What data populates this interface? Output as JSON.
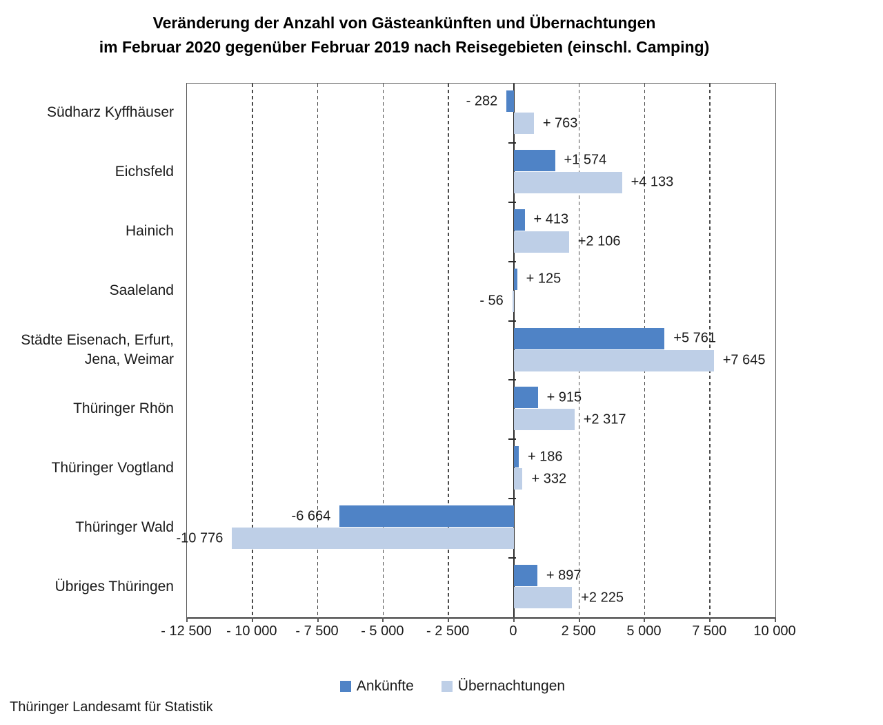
{
  "title": {
    "line1": "Veränderung der Anzahl von Gästeankünften und Übernachtungen",
    "line2": "im Februar 2020 gegenüber Februar 2019 nach Reisegebieten (einschl. Camping)"
  },
  "source": "Thüringer Landesamt für Statistik",
  "colors": {
    "ankuenfte": "#4F83C6",
    "uebernachtungen": "#BECFE7",
    "gridline": "#4a4a4a",
    "axis": "#595959"
  },
  "chart_data": {
    "type": "bar",
    "orientation": "horizontal",
    "title": "Veränderung der Anzahl von Gästeankünften und Übernachtungen im Februar 2020 gegenüber Februar 2019 nach Reisegebieten (einschl. Camping)",
    "xlabel": "",
    "ylabel": "",
    "grid": "dashed-vertical",
    "legend_position": "bottom",
    "xlim": [
      -12500,
      10000
    ],
    "x_ticks": [
      -12500,
      -10000,
      -7500,
      -5000,
      -2500,
      0,
      2500,
      5000,
      7500,
      10000
    ],
    "x_tick_labels": [
      "- 12 500",
      "- 10 000",
      "- 7 500",
      "- 5 000",
      "- 2 500",
      "0",
      "2 500",
      "5 000",
      "7 500",
      "10 000"
    ],
    "categories": [
      "Südharz Kyffhäuser",
      "Eichsfeld",
      "Hainich",
      "Saaleland",
      "Städte Eisenach, Erfurt,\nJena, Weimar",
      "Thüringer Rhön",
      "Thüringer Vogtland",
      "Thüringer Wald",
      "Übriges Thüringen"
    ],
    "series": [
      {
        "name": "Ankünfte",
        "values": [
          -282,
          1574,
          413,
          125,
          5761,
          915,
          186,
          -6664,
          897
        ],
        "labels": [
          "- 282",
          "+1 574",
          "+ 413",
          "+ 125",
          "+5 761",
          "+ 915",
          "+ 186",
          "-6 664",
          "+ 897"
        ]
      },
      {
        "name": "Übernachtungen",
        "values": [
          763,
          4133,
          2106,
          -56,
          7645,
          2317,
          332,
          -10776,
          2225
        ],
        "labels": [
          "+ 763",
          "+4 133",
          "+2 106",
          "- 56",
          "+7 645",
          "+2 317",
          "+ 332",
          "-10 776",
          "+2 225"
        ]
      }
    ]
  }
}
